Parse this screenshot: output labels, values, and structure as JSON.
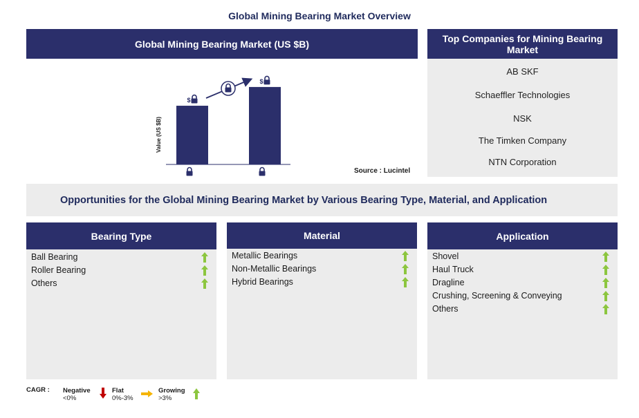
{
  "page_title": "Global Mining Bearing Market Overview",
  "market_chart": {
    "header": "Global Mining Bearing Market (US $B)",
    "ylabel": "Value (US $B)",
    "source": "Source : Lucintel",
    "currency_symbol": "$"
  },
  "chart_data": {
    "type": "bar",
    "title": "Global Mining Bearing Market (US $B)",
    "ylabel": "Value (US $B)",
    "categories": [
      "",
      ""
    ],
    "values": [
      0.72,
      0.95
    ],
    "note": "values and category labels are locked (padlock icons)"
  },
  "top_companies": {
    "header": "Top Companies for Mining Bearing Market",
    "items": [
      "AB SKF",
      "Schaeffler Technologies",
      "NSK",
      "The Timken Company",
      "NTN Corporation"
    ]
  },
  "opportunities": {
    "title": "Opportunities for the Global Mining Bearing Market by Various Bearing Type, Material, and Application"
  },
  "segments": {
    "bearing_type": {
      "header": "Bearing Type",
      "items": [
        "Ball Bearing",
        "Roller Bearing",
        "Others"
      ]
    },
    "material": {
      "header": "Material",
      "items": [
        "Metallic Bearings",
        "Non-Metallic Bearings",
        "Hybrid Bearings"
      ]
    },
    "application": {
      "header": "Application",
      "items": [
        "Shovel",
        "Haul Truck",
        "Dragline",
        "Crushing, Screening & Conveying",
        "Others"
      ]
    }
  },
  "legend": {
    "label": "CAGR :",
    "negative": "Negative",
    "negative_range": "<0%",
    "flat": "Flat",
    "flat_range": "0%-3%",
    "growing": "Growing",
    "growing_range": ">3%"
  },
  "colors": {
    "navy": "#2b2f6b",
    "panel_grey": "#ececec",
    "growing_green": "#8cc63f",
    "negative_red": "#c00000",
    "flat_orange": "#f5b400"
  },
  "icons": {
    "lock": "lock-icon",
    "growth_arrow": "up-arrow-icon"
  }
}
